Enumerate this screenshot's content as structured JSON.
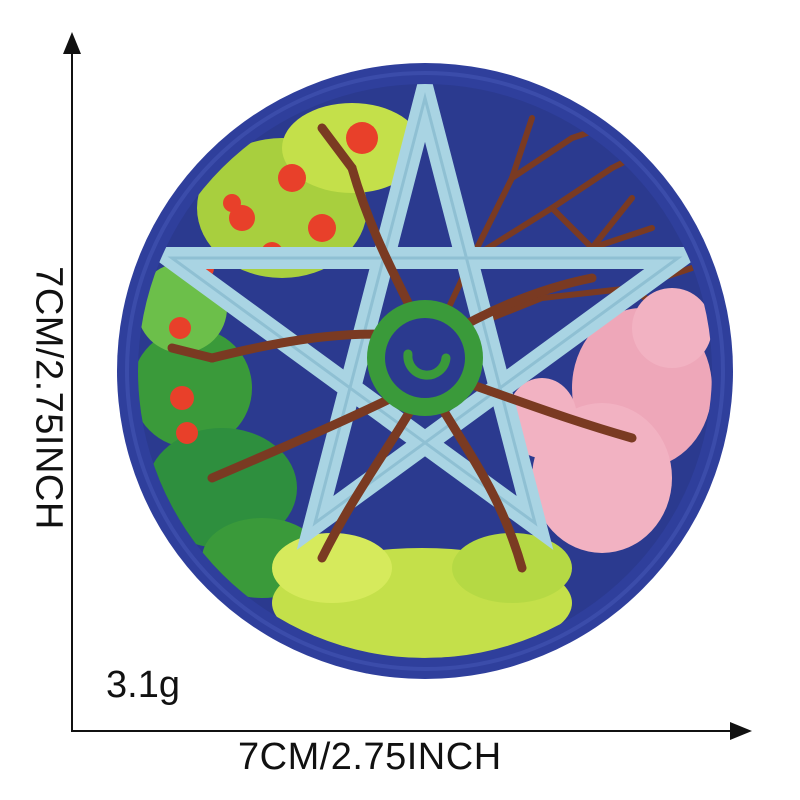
{
  "dimensions": {
    "width_label": "7CM/2.75INCH",
    "height_label": "7CM/2.75INCH"
  },
  "weight": "3.1g",
  "patch": {
    "colors": {
      "border": "#2f3f9c",
      "background": "#2b3a8f",
      "pentagram": "#a9d4e3",
      "branches": "#7a3a22",
      "light_green": "#c4e04a",
      "dark_green": "#2e8f3e",
      "red": "#e8402a",
      "pink": "#f2b2c2",
      "center_ring": "#3a9a3a"
    }
  }
}
